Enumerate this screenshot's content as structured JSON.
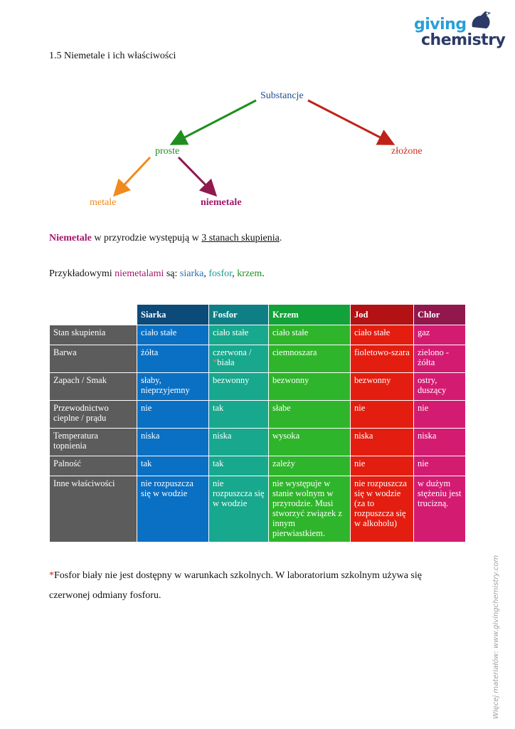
{
  "logo": {
    "line1": "giving",
    "line2": "chemistry"
  },
  "heading": "1.5 Niemetale i ich właściwości",
  "tree": {
    "root": "Substancje",
    "left": "proste",
    "right": "złożone",
    "leaf_left": "metale",
    "leaf_right": "niemetale",
    "colors": {
      "root": "#1f4e8f",
      "proste": "#1e8f1e",
      "zlozone": "#d12a1f",
      "metale": "#f08a1c",
      "niemetale": "#a3176a"
    }
  },
  "para1": {
    "a": "Niemetale",
    "b": " w przyrodzie występują w ",
    "c": "3 stanach skupienia",
    "d": "."
  },
  "para2": {
    "a": "Przykładowymi ",
    "b": "niemetalami",
    "c": " są: ",
    "d": "siarka",
    "e": ", ",
    "f": "fosfor",
    "g": ", ",
    "h": "krzem",
    "i": "."
  },
  "table": {
    "headers": [
      "Siarka",
      "Fosfor",
      "Krzem",
      "Jod",
      "Chlor"
    ],
    "rows": [
      {
        "label": "Stan skupienia",
        "cells": [
          "ciało stałe",
          "ciało stałe",
          "ciało stałe",
          "ciało stałe",
          "gaz"
        ]
      },
      {
        "label": "Barwa",
        "cells": [
          "żółta",
          "czerwona /",
          "ciemnoszara",
          "fioletowo-szara",
          "zielono - żółta"
        ],
        "fosfor_extra": "biała"
      },
      {
        "label": "Zapach / Smak",
        "cells": [
          "słaby, nieprzyjemny",
          "bezwonny",
          "bezwonny",
          "bezwonny",
          "ostry, duszący"
        ]
      },
      {
        "label": "Przewodnictwo cieplne / prądu",
        "cells": [
          "nie",
          "tak",
          "słabe",
          "nie",
          "nie"
        ]
      },
      {
        "label": "Temperatura topnienia",
        "cells": [
          "niska",
          "niska",
          "wysoka",
          "niska",
          "niska"
        ]
      },
      {
        "label": "Palność",
        "cells": [
          "tak",
          "tak",
          "zależy",
          "nie",
          "nie"
        ]
      },
      {
        "label": "Inne właściwości",
        "cells": [
          "nie rozpuszcza się w wodzie",
          "nie rozpuszcza się w wodzie",
          "nie występuje w stanie wolnym w przyrodzie. Musi stworzyć związek z innym pierwiastkiem.",
          "nie rozpuszcza się w wodzie (za to rozpuszcza się w alkoholu)",
          "w dużym stężeniu jest trucizną."
        ]
      }
    ]
  },
  "footnote": {
    "mark": "*",
    "text": "Fosfor biały nie jest dostępny w warunkach szkolnych. W laboratorium szkolnym używa się czerwonej odmiany fosforu."
  },
  "sidenote": "Więcej materiałów: www.givingchemistry.com"
}
